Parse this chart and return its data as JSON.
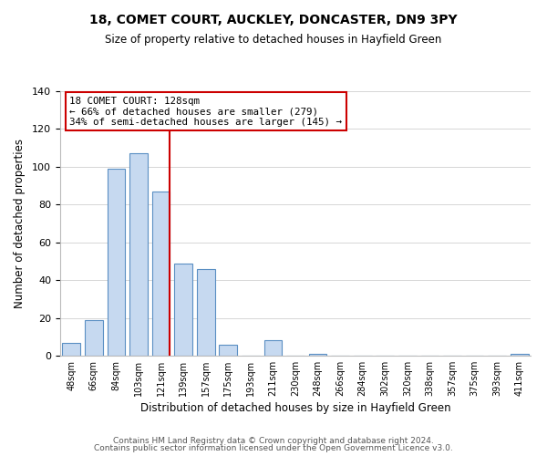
{
  "title": "18, COMET COURT, AUCKLEY, DONCASTER, DN9 3PY",
  "subtitle": "Size of property relative to detached houses in Hayfield Green",
  "xlabel": "Distribution of detached houses by size in Hayfield Green",
  "ylabel": "Number of detached properties",
  "footer1": "Contains HM Land Registry data © Crown copyright and database right 2024.",
  "footer2": "Contains public sector information licensed under the Open Government Licence v3.0.",
  "bar_labels": [
    "48sqm",
    "66sqm",
    "84sqm",
    "103sqm",
    "121sqm",
    "139sqm",
    "157sqm",
    "175sqm",
    "193sqm",
    "211sqm",
    "230sqm",
    "248sqm",
    "266sqm",
    "284sqm",
    "302sqm",
    "320sqm",
    "338sqm",
    "357sqm",
    "375sqm",
    "393sqm",
    "411sqm"
  ],
  "bar_values": [
    7,
    19,
    99,
    107,
    87,
    49,
    46,
    6,
    0,
    8,
    0,
    1,
    0,
    0,
    0,
    0,
    0,
    0,
    0,
    0,
    1
  ],
  "bar_color": "#c6d9f0",
  "bar_edge_color": "#5a8fc3",
  "vline_x_index": 4,
  "vline_color": "#cc0000",
  "annotation_title": "18 COMET COURT: 128sqm",
  "annotation_line1": "← 66% of detached houses are smaller (279)",
  "annotation_line2": "34% of semi-detached houses are larger (145) →",
  "annotation_box_color": "#ffffff",
  "annotation_box_edge": "#cc0000",
  "ylim": [
    0,
    140
  ],
  "yticks": [
    0,
    20,
    40,
    60,
    80,
    100,
    120,
    140
  ],
  "background_color": "#ffffff",
  "grid_color": "#d0d0d0"
}
